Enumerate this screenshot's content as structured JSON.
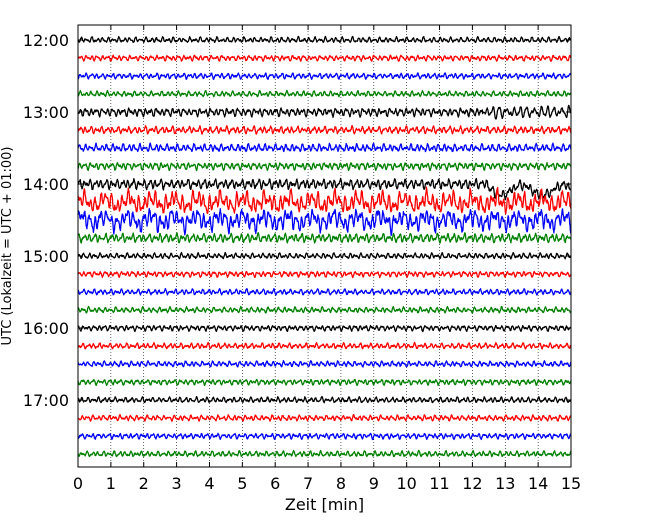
{
  "chart_data": {
    "type": "line",
    "title": "",
    "xlabel": "Zeit  [min]",
    "ylabel": "UTC (Lokalzeit = UTC + 01:00)",
    "xlim": [
      0,
      15
    ],
    "x_ticks": [
      "0",
      "1",
      "2",
      "3",
      "4",
      "5",
      "6",
      "7",
      "8",
      "9",
      "10",
      "11",
      "12",
      "13",
      "14",
      "15"
    ],
    "y_tick_labels": [
      "12:00",
      "13:00",
      "14:00",
      "15:00",
      "16:00",
      "17:00"
    ],
    "grid": "vertical dotted",
    "trace_colors": [
      "#000000",
      "#ff0000",
      "#0000ff",
      "#008000"
    ],
    "traces_start": "12:00",
    "trace_interval_minutes": 15,
    "trace_count": 24,
    "trace_amplitudes": [
      1,
      1,
      1,
      1,
      1.5,
      1.3,
      1.4,
      1.3,
      1.8,
      3.2,
      3.2,
      1.6,
      1,
      1,
      1,
      1,
      1,
      1,
      1,
      1,
      1,
      1,
      1,
      1
    ]
  }
}
